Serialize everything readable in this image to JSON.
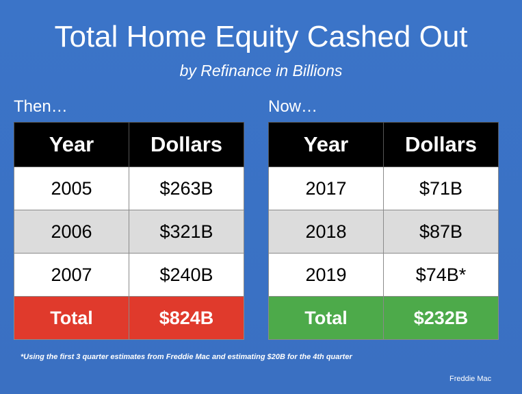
{
  "chart_data": {
    "type": "table",
    "title": "Total Home Equity Cashed Out",
    "subtitle": "by Refinance in Billions",
    "tables": [
      {
        "label": "Then…",
        "columns": [
          "Year",
          "Dollars"
        ],
        "rows": [
          [
            "2005",
            "$263B"
          ],
          [
            "2006",
            "$321B"
          ],
          [
            "2007",
            "$240B"
          ]
        ],
        "total": [
          "Total",
          "$824B"
        ],
        "total_color": "#e03a2c"
      },
      {
        "label": "Now…",
        "columns": [
          "Year",
          "Dollars"
        ],
        "rows": [
          [
            "2017",
            "$71B"
          ],
          [
            "2018",
            "$87B"
          ],
          [
            "2019",
            "$74B*"
          ]
        ],
        "total": [
          "Total",
          "$232B"
        ],
        "total_color": "#4daa4a"
      }
    ],
    "footnote": "*Using the first 3 quarter estimates from Freddie Mac and estimating $20B for the 4th quarter",
    "source": "Freddie Mac"
  },
  "colors": {
    "background": "#3a72c6",
    "header_bg": "#000000",
    "row_alt_bg": "#dcdcdc",
    "then_total": "#e03a2c",
    "now_total": "#4daa4a"
  }
}
